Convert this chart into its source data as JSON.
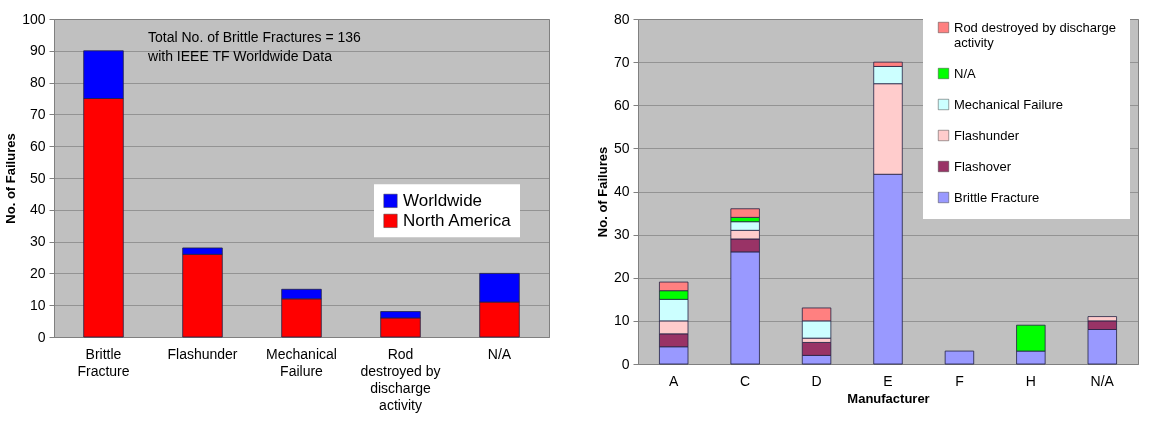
{
  "chart_data": [
    {
      "type": "bar",
      "stacked": true,
      "ylabel": "No. of Failures",
      "categories": [
        "Brittle Fracture",
        "Flashunder",
        "Mechanical Failure",
        "Rod destroyed by discharge activity",
        "N/A"
      ],
      "series": [
        {
          "name": "North America",
          "color": "#ff0000",
          "values": [
            75,
            26,
            12,
            6,
            11
          ]
        },
        {
          "name": "Worldwide",
          "color": "#0000ff",
          "values": [
            15,
            2,
            3,
            2,
            9
          ]
        }
      ],
      "ylim": [
        0,
        100
      ],
      "yticks": [
        0,
        10,
        20,
        30,
        40,
        50,
        60,
        70,
        80,
        90,
        100
      ],
      "grid": "y",
      "legend": "right",
      "annotations": [
        "Total No. of Brittle Fractures = 136\nwith IEEE TF Worldwide Data"
      ]
    },
    {
      "type": "bar",
      "stacked": true,
      "xlabel": "Manufacturer",
      "ylabel": "No. of Failures",
      "categories": [
        "A",
        "C",
        "D",
        "E",
        "F",
        "H",
        "N/A"
      ],
      "series": [
        {
          "name": "Brittle Fracture",
          "color": "#9999ff",
          "values": [
            4,
            26,
            2,
            44,
            3,
            3,
            8
          ]
        },
        {
          "name": "Flashover",
          "color": "#993366",
          "values": [
            3,
            3,
            3,
            0,
            0,
            0,
            2
          ]
        },
        {
          "name": "Flashunder",
          "color": "#ffcccc",
          "values": [
            3,
            2,
            1,
            21,
            0,
            0,
            1
          ]
        },
        {
          "name": "Mechanical Failure",
          "color": "#ccffff",
          "values": [
            5,
            2,
            4,
            4,
            0,
            0,
            0
          ]
        },
        {
          "name": "N/A",
          "color": "#00ff00",
          "values": [
            2,
            1,
            0,
            0,
            0,
            6,
            0
          ]
        },
        {
          "name": "Rod destroyed by discharge activity",
          "color": "#ff8080",
          "values": [
            2,
            2,
            3,
            1,
            0,
            0,
            0
          ]
        }
      ],
      "ylim": [
        0,
        80
      ],
      "yticks": [
        0,
        10,
        20,
        30,
        40,
        50,
        60,
        70,
        80
      ],
      "grid": "y",
      "legend": "top right"
    }
  ]
}
